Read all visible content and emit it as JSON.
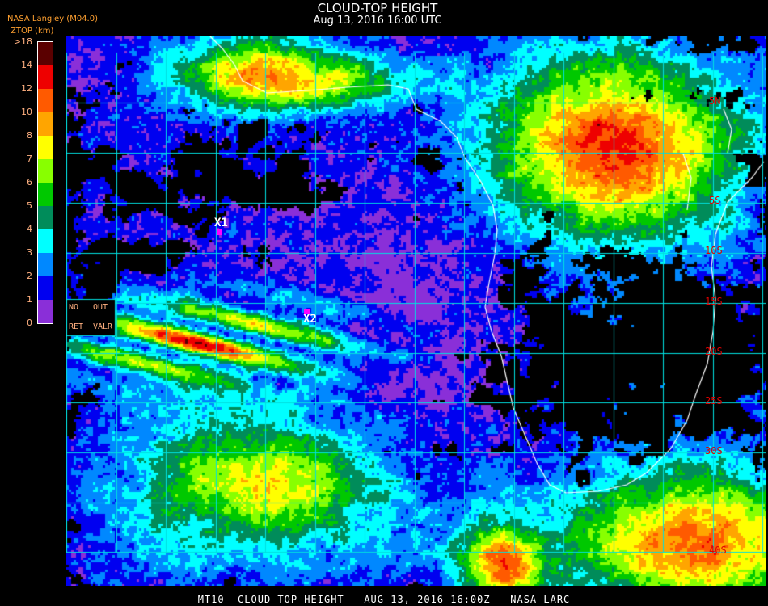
{
  "header": {
    "title": "CLOUD-TOP HEIGHT",
    "subtitle": "Aug 13, 2016 16:00 UTC",
    "source": "NASA Langley (M04.0)",
    "unit": "ZTOP (km)"
  },
  "legend": {
    "labels": [
      ">18",
      "14",
      "12",
      "10",
      "8",
      "7",
      "6",
      "5",
      "4",
      "3",
      "2",
      "1",
      "0"
    ],
    "colors_top_to_bottom": [
      "#5a0000",
      "#ee0000",
      "#ff5a00",
      "#ffa500",
      "#ffff00",
      "#88ff00",
      "#00c800",
      "#008c5a",
      "#00ffff",
      "#0088ff",
      "#0000f0",
      "#8a2fd8"
    ]
  },
  "map": {
    "grid_color": "#00e0e0",
    "coast_color": "#ffffff",
    "lat_labels": [
      "5N",
      "5S",
      "10S",
      "15S",
      "20S",
      "25S",
      "30S",
      "40S"
    ],
    "no_retrieval": {
      "line1": "NO",
      "line2": "RET"
    },
    "out_valr": {
      "line1": "OUT",
      "line2": "VALR"
    },
    "markers": [
      {
        "label": "X1",
        "color": "#ff00ff"
      },
      {
        "label": "X2",
        "color": "#ff00ff"
      }
    ]
  },
  "footer": {
    "text": "MT10  CLOUD-TOP HEIGHT   AUG 13, 2016 16:00Z   NASA LARC"
  }
}
